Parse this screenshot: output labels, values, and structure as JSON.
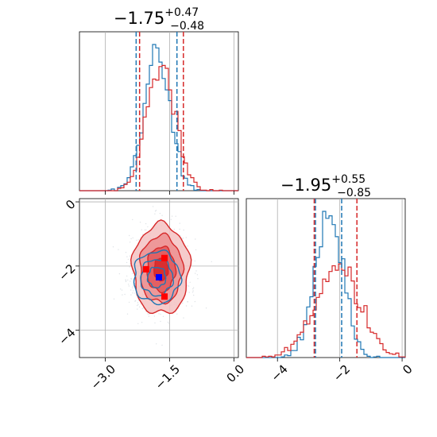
{
  "chart_data": {
    "type": "corner",
    "colors": {
      "blue": "#1f77b4",
      "red": "#d62728",
      "grid": "#b0b0b0"
    },
    "parameters": [
      {
        "title": {
          "median": "−1.75",
          "plus": "+0.47",
          "minus": "−0.48"
        },
        "xlim": [
          -3.6,
          0.1
        ],
        "xticks": [
          {
            "v": -3.0,
            "label": "−3.0"
          },
          {
            "v": -1.5,
            "label": "−1.5"
          },
          {
            "v": 0.0,
            "label": "0.0"
          }
        ],
        "quantiles": {
          "blue": [
            -2.28,
            -1.33
          ],
          "red": [
            -2.2,
            -1.18
          ]
        }
      },
      {
        "title": {
          "median": "−1.95",
          "plus": "+0.55",
          "minus": "−0.85"
        },
        "xlim": [
          -5.0,
          0.1
        ],
        "xticks": [
          {
            "v": -4,
            "label": "−4"
          },
          {
            "v": -2,
            "label": "−2"
          },
          {
            "v": 0,
            "label": "0"
          }
        ],
        "quantiles": {
          "blue": [
            -2.78,
            -1.94
          ],
          "red": [
            -2.82,
            -1.45
          ]
        }
      }
    ],
    "joint": {
      "xlim": [
        -3.6,
        0.1
      ],
      "ylim": [
        -4.85,
        0.1
      ],
      "yticks": [
        {
          "v": -4,
          "label": "−4"
        },
        {
          "v": -2,
          "label": "−2"
        },
        {
          "v": 0,
          "label": "0"
        }
      ],
      "markers": [
        {
          "x": -1.75,
          "y": -2.35,
          "color": "blue"
        },
        {
          "x": -1.62,
          "y": -1.75,
          "color": "red"
        },
        {
          "x": -2.05,
          "y": -2.1,
          "color": "red"
        },
        {
          "x": -1.62,
          "y": -2.95,
          "color": "red"
        }
      ]
    },
    "series": [
      {
        "color": "blue",
        "mu": [
          -1.8,
          -2.35
        ],
        "sigma": [
          0.3,
          0.45
        ]
      },
      {
        "color": "red",
        "mu": [
          -1.7,
          -2.1
        ],
        "sigma": [
          0.33,
          0.7
        ]
      }
    ]
  }
}
